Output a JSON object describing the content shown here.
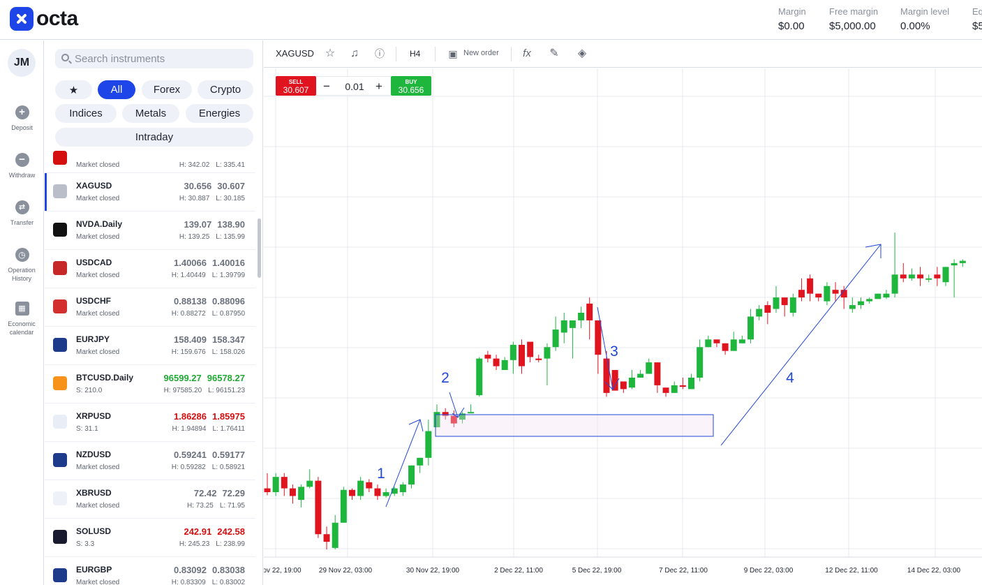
{
  "brand": {
    "name": "octa"
  },
  "account": [
    {
      "label": "Margin",
      "value": "$0.00"
    },
    {
      "label": "Free margin",
      "value": "$5,000.00"
    },
    {
      "label": "Margin level",
      "value": "0.00%"
    },
    {
      "label": "Eq",
      "value": "$5"
    }
  ],
  "user": {
    "initials": "JM"
  },
  "nav": [
    {
      "label": "Deposit",
      "icon": "plus-icon"
    },
    {
      "label": "Withdraw",
      "icon": "minus-icon"
    },
    {
      "label": "Transfer",
      "icon": "transfer-icon"
    },
    {
      "label": "Operation History",
      "icon": "clock-icon"
    },
    {
      "label": "Economic calendar",
      "icon": "calendar-icon"
    }
  ],
  "search": {
    "placeholder": "Search instruments"
  },
  "filters": {
    "favorites": "★",
    "all": "All",
    "forex": "Forex",
    "crypto": "Crypto",
    "indices": "Indices",
    "metals": "Metals",
    "energies": "Energies",
    "intraday": "Intraday"
  },
  "instruments": [
    {
      "name": "",
      "sub": "Market closed",
      "h": "H: 342.02",
      "l": "L: 335.41",
      "icon": "stock-icon",
      "icon_bg": "#d50f0f",
      "partial": true
    },
    {
      "name": "XAGUSD",
      "sub": "Market closed",
      "bid": "30.656",
      "ask": "30.607",
      "h": "H: 30.887",
      "l": "L: 30.185",
      "icon": "silver-bars-icon",
      "icon_bg": "#b9bec8",
      "selected": true
    },
    {
      "name": "NVDA.Daily",
      "sub": "Market closed",
      "bid": "139.07",
      "ask": "138.90",
      "h": "H: 139.25",
      "l": "L: 135.99",
      "icon": "nvidia-icon",
      "icon_bg": "#111111"
    },
    {
      "name": "USDCAD",
      "sub": "Market closed",
      "bid": "1.40066",
      "ask": "1.40016",
      "h": "H: 1.40449",
      "l": "L: 1.39799",
      "icon": "flag-usd-cad-icon",
      "icon_bg": "#c62828"
    },
    {
      "name": "USDCHF",
      "sub": "Market closed",
      "bid": "0.88138",
      "ask": "0.88096",
      "h": "H: 0.88272",
      "l": "L: 0.87950",
      "icon": "flag-usd-chf-icon",
      "icon_bg": "#d32f2f"
    },
    {
      "name": "EURJPY",
      "sub": "Market closed",
      "bid": "158.409",
      "ask": "158.347",
      "h": "H: 159.676",
      "l": "L: 158.026",
      "icon": "flag-eur-jpy-icon",
      "icon_bg": "#1e3a8a"
    },
    {
      "name": "BTCUSD.Daily",
      "sub": "S: 210.0",
      "bid": "96599.27",
      "ask": "96578.27",
      "h": "H: 97585.20",
      "l": "L: 96151.23",
      "icon": "bitcoin-icon",
      "icon_bg": "#f7931a",
      "color": "green"
    },
    {
      "name": "XRPUSD",
      "sub": "S: 31.1",
      "bid": "1.86286",
      "ask": "1.85975",
      "h": "H: 1.94894",
      "l": "L: 1.76411",
      "icon": "xrp-icon",
      "icon_bg": "#e9edf5",
      "color": "red"
    },
    {
      "name": "NZDUSD",
      "sub": "Market closed",
      "bid": "0.59241",
      "ask": "0.59177",
      "h": "H: 0.59282",
      "l": "L: 0.58921",
      "icon": "flag-nzd-usd-icon",
      "icon_bg": "#1e3a8a"
    },
    {
      "name": "XBRUSD",
      "sub": "Market closed",
      "bid": "72.42",
      "ask": "72.29",
      "h": "H: 73.25",
      "l": "L: 71.95",
      "icon": "oil-drop-icon",
      "icon_bg": "#eef1f7"
    },
    {
      "name": "SOLUSD",
      "sub": "S: 3.3",
      "bid": "242.91",
      "ask": "242.58",
      "h": "H: 245.23",
      "l": "L: 238.99",
      "icon": "solana-icon",
      "icon_bg": "#1a1a2e",
      "color": "red"
    },
    {
      "name": "EURGBP",
      "sub": "Market closed",
      "bid": "0.83092",
      "ask": "0.83038",
      "h": "H: 0.83309",
      "l": "L: 0.83002",
      "icon": "flag-eur-gbp-icon",
      "icon_bg": "#1e3a8a"
    }
  ],
  "toolbar": {
    "symbol": "XAGUSD",
    "timeframe": "H4",
    "new_order": "New order"
  },
  "trade": {
    "sell_label": "SELL",
    "sell_price": "30.607",
    "buy_label": "BUY",
    "buy_price": "30.656",
    "quantity": "0.01",
    "minus": "−",
    "plus": "+"
  },
  "chart_data": {
    "type": "candlestick",
    "symbol": "XAGUSD",
    "timeframe": "H4",
    "x_tick_labels": [
      "ov 22, 19:00",
      "29 Nov 22, 03:00",
      "30 Nov 22, 19:00",
      "2 Dec 22, 11:00",
      "5 Dec 22, 19:00",
      "7 Dec 22, 11:00",
      "9 Dec 22, 03:00",
      "12 Dec 22, 11:00",
      "14 Dec 22, 03:00"
    ],
    "grid": true,
    "up_color": "#1fb63d",
    "down_color": "#e0141e",
    "candles": [
      [
        20.4,
        20.35,
        20.6,
        20.31
      ],
      [
        20.35,
        20.55,
        20.6,
        20.3
      ],
      [
        20.55,
        20.4,
        20.6,
        20.3
      ],
      [
        20.4,
        20.3,
        20.45,
        20.2
      ],
      [
        20.25,
        20.42,
        20.45,
        20.15
      ],
      [
        20.42,
        20.5,
        20.65,
        20.4
      ],
      [
        20.5,
        19.8,
        20.55,
        19.75
      ],
      [
        19.8,
        19.7,
        19.9,
        19.6
      ],
      [
        19.62,
        19.95,
        20.05,
        19.6
      ],
      [
        19.95,
        20.38,
        20.42,
        19.95
      ],
      [
        20.38,
        20.3,
        20.4,
        20.25
      ],
      [
        20.3,
        20.5,
        20.55,
        20.25
      ],
      [
        20.48,
        20.4,
        20.52,
        20.35
      ],
      [
        20.4,
        20.3,
        20.45,
        20.25
      ],
      [
        20.3,
        20.35,
        20.4,
        20.28
      ],
      [
        20.33,
        20.4,
        20.42,
        20.3
      ],
      [
        20.35,
        20.45,
        20.48,
        20.3
      ],
      [
        20.45,
        20.7,
        20.7,
        20.4
      ],
      [
        20.7,
        20.8,
        20.8,
        20.6
      ],
      [
        20.8,
        21.15,
        21.3,
        20.7
      ],
      [
        21.2,
        21.4,
        21.5,
        21.2
      ],
      [
        21.4,
        21.35,
        21.45,
        21.3
      ],
      [
        21.35,
        21.25,
        21.42,
        21.2
      ],
      [
        21.3,
        21.38,
        21.4,
        21.25
      ],
      [
        21.4,
        21.4,
        21.5,
        21.4
      ],
      [
        21.62,
        22.1,
        22.12,
        21.6
      ],
      [
        22.15,
        22.1,
        22.2,
        22.05
      ],
      [
        22.1,
        22.0,
        22.15,
        21.95
      ],
      [
        21.95,
        22.08,
        22.12,
        21.95
      ],
      [
        22.08,
        22.28,
        22.32,
        21.9
      ],
      [
        22.28,
        22.0,
        22.35,
        21.9
      ],
      [
        22.32,
        22.12,
        22.25,
        22.05
      ],
      [
        22.1,
        22.08,
        22.15,
        22.05
      ],
      [
        22.1,
        22.25,
        22.3,
        21.75
      ],
      [
        22.25,
        22.48,
        22.65,
        22.2
      ],
      [
        22.44,
        22.6,
        22.7,
        22.3
      ],
      [
        22.5,
        22.6,
        22.6,
        22.1
      ],
      [
        22.6,
        22.7,
        22.78,
        22.5
      ],
      [
        22.82,
        22.6,
        22.9,
        22.35
      ],
      [
        22.6,
        22.15,
        22.35,
        21.9
      ],
      [
        22.1,
        21.65,
        22.2,
        21.6
      ],
      [
        21.95,
        21.68,
        21.72,
        21.7
      ],
      [
        21.8,
        21.7,
        21.76,
        21.65
      ],
      [
        21.72,
        21.85,
        21.95,
        21.7
      ],
      [
        21.85,
        21.9,
        21.95,
        21.85
      ],
      [
        21.9,
        22.05,
        22.1,
        21.9
      ],
      [
        22.05,
        21.75,
        22.05,
        21.65
      ],
      [
        21.72,
        21.65,
        21.7,
        21.6
      ],
      [
        21.65,
        21.75,
        21.8,
        21.65
      ],
      [
        21.75,
        21.73,
        21.85,
        21.7
      ],
      [
        21.7,
        21.85,
        21.9,
        21.7
      ],
      [
        21.85,
        22.25,
        22.35,
        21.8
      ],
      [
        22.25,
        22.35,
        22.4,
        22.25
      ],
      [
        22.35,
        22.3,
        22.35,
        22.25
      ],
      [
        22.3,
        22.2,
        22.3,
        22.15
      ],
      [
        22.2,
        22.35,
        22.45,
        22.2
      ],
      [
        22.3,
        22.35,
        22.4,
        22.3
      ],
      [
        22.35,
        22.65,
        22.75,
        22.3
      ],
      [
        22.65,
        22.75,
        22.8,
        22.6
      ],
      [
        22.8,
        22.7,
        22.85,
        22.55
      ],
      [
        22.75,
        22.9,
        23.05,
        22.7
      ],
      [
        22.9,
        22.8,
        22.85,
        22.65
      ],
      [
        22.7,
        22.9,
        22.95,
        22.65
      ],
      [
        23.0,
        22.9,
        23.15,
        22.85
      ],
      [
        23.15,
        22.95,
        23.2,
        22.85
      ],
      [
        22.95,
        22.9,
        22.95,
        22.85
      ],
      [
        22.85,
        23.05,
        23.1,
        22.8
      ],
      [
        23.0,
        22.95,
        23.1,
        22.85
      ],
      [
        23.0,
        22.9,
        23.05,
        22.75
      ],
      [
        22.75,
        22.8,
        22.9,
        22.7
      ],
      [
        22.8,
        22.85,
        22.9,
        22.75
      ],
      [
        22.85,
        22.88,
        22.9,
        22.82
      ],
      [
        22.88,
        22.95,
        22.95,
        22.9
      ],
      [
        22.9,
        22.95,
        23.0,
        22.88
      ],
      [
        22.95,
        23.2,
        23.75,
        22.9
      ],
      [
        23.2,
        23.15,
        23.35,
        23.1
      ],
      [
        23.15,
        23.2,
        23.28,
        23.12
      ],
      [
        23.2,
        23.15,
        23.3,
        23.05
      ],
      [
        23.15,
        23.15,
        23.2,
        23.1
      ],
      [
        23.2,
        23.15,
        23.3,
        23.05
      ],
      [
        23.1,
        23.3,
        23.3,
        23.05
      ],
      [
        23.32,
        23.35,
        23.4,
        22.9
      ],
      [
        23.35,
        23.38,
        23.4,
        23.3
      ]
    ],
    "annotations": [
      {
        "label": "1"
      },
      {
        "label": "2"
      },
      {
        "label": "3"
      },
      {
        "label": "4"
      }
    ],
    "ylim": [
      19.5,
      25.9
    ],
    "annotation_color": "#2048d8"
  }
}
